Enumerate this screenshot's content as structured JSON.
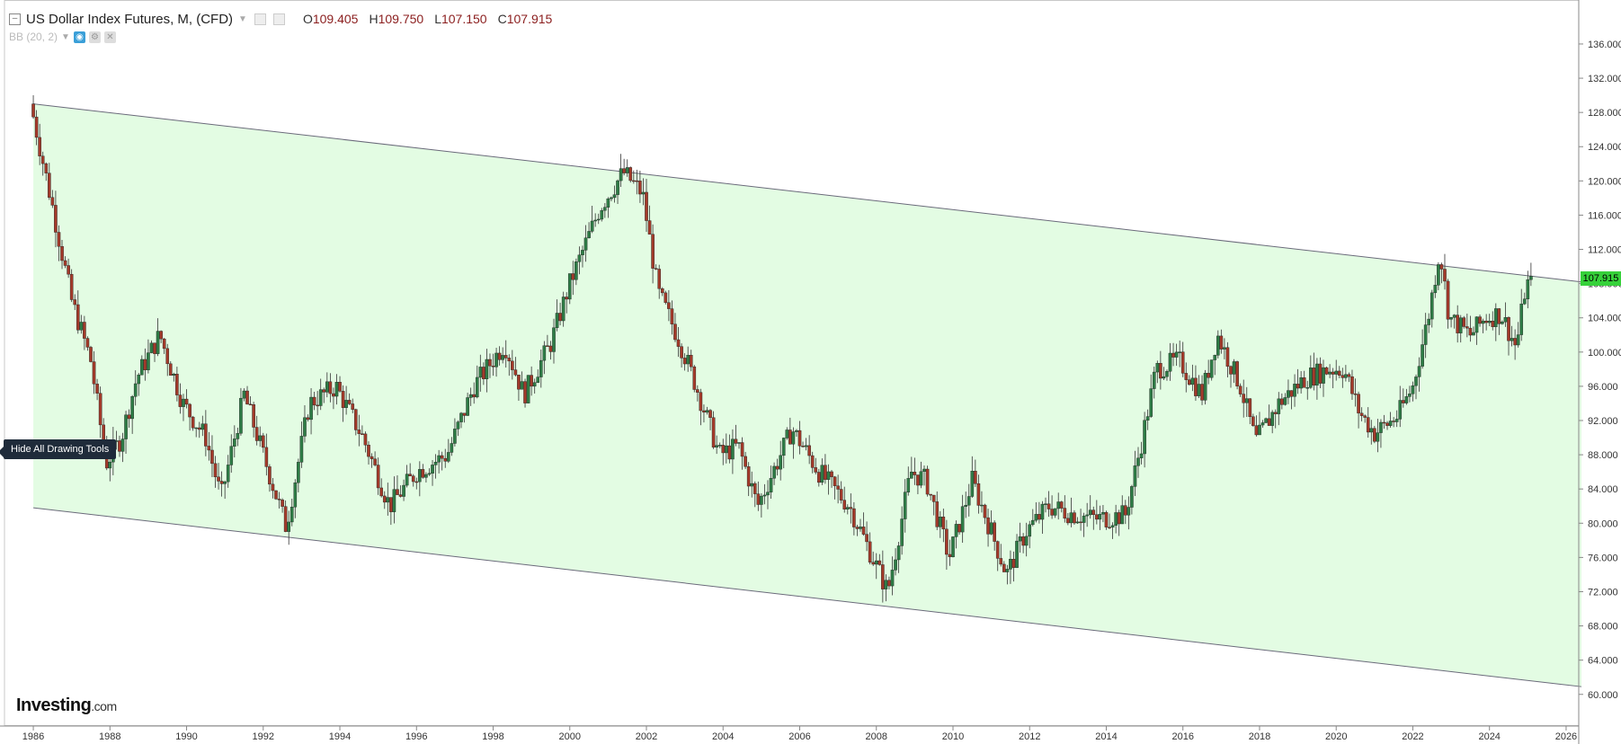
{
  "header": {
    "title": "US Dollar Index Futures, M, (CFD)",
    "ohlc": [
      {
        "key": "O",
        "value": "109.405"
      },
      {
        "key": "H",
        "value": "109.750"
      },
      {
        "key": "L",
        "value": "107.150"
      },
      {
        "key": "C",
        "value": "107.915"
      }
    ]
  },
  "indicator": {
    "label": "BB (20, 2)"
  },
  "tooltip": {
    "text": "Hide All Drawing Tools"
  },
  "logo": {
    "name": "Investing",
    "suffix": ".com"
  },
  "last_price": "107.915",
  "colors": {
    "up": "#2e7d46",
    "down": "#a33a2a",
    "channel_fill": "#e3fce3",
    "price_tag": "#36d13a"
  },
  "chart_data": {
    "type": "candlestick",
    "title": "US Dollar Index Futures, M, (CFD)",
    "xlim": [
      1985.6,
      2026.4
    ],
    "ylim": [
      58.4,
      138.2
    ],
    "x_ticks": [
      "1986",
      "1988",
      "1990",
      "1992",
      "1994",
      "1996",
      "1998",
      "2000",
      "2002",
      "2004",
      "2006",
      "2008",
      "2010",
      "2012",
      "2014",
      "2016",
      "2018",
      "2020",
      "2022",
      "2024",
      "2026",
      "202"
    ],
    "y_ticks": [
      "136.000",
      "132.000",
      "128.000",
      "124.000",
      "120.000",
      "116.000",
      "112.000",
      "108.000",
      "104.000",
      "100.000",
      "96.000",
      "92.000",
      "88.000",
      "84.000",
      "80.000",
      "76.000",
      "72.000",
      "68.000",
      "64.000",
      "60.000"
    ],
    "channel": {
      "upper": [
        [
          1986.0,
          129.0
        ],
        [
          2026.4,
          108.2
        ]
      ],
      "lower": [
        [
          1986.0,
          81.8
        ],
        [
          2026.4,
          60.9
        ]
      ]
    },
    "series": [
      {
        "values": [
          [
            1986.0,
            127.5
          ],
          [
            1986.5,
            117.0
          ],
          [
            1987.0,
            106.0
          ],
          [
            1987.5,
            99.0
          ],
          [
            1987.9,
            87.0
          ],
          [
            1988.3,
            90.0
          ],
          [
            1988.7,
            97.0
          ],
          [
            1989.3,
            102.0
          ],
          [
            1989.9,
            94.0
          ],
          [
            1990.5,
            90.0
          ],
          [
            1990.9,
            83.0
          ],
          [
            1991.5,
            95.0
          ],
          [
            1992.0,
            88.0
          ],
          [
            1992.6,
            79.5
          ],
          [
            1993.2,
            94.0
          ],
          [
            1993.9,
            96.0
          ],
          [
            1994.6,
            90.0
          ],
          [
            1995.3,
            82.0
          ],
          [
            1996.0,
            86.0
          ],
          [
            1996.8,
            88.0
          ],
          [
            1997.5,
            96.0
          ],
          [
            1998.3,
            101.0
          ],
          [
            1998.8,
            95.0
          ],
          [
            1999.5,
            101.0
          ],
          [
            2000.0,
            108.0
          ],
          [
            2000.8,
            117.0
          ],
          [
            2001.4,
            121.0
          ],
          [
            2001.9,
            118.5
          ],
          [
            2002.3,
            107.0
          ],
          [
            2002.8,
            102.0
          ],
          [
            2003.3,
            96.0
          ],
          [
            2003.9,
            88.0
          ],
          [
            2004.4,
            89.0
          ],
          [
            2004.9,
            82.0
          ],
          [
            2005.8,
            91.0
          ],
          [
            2006.5,
            86.0
          ],
          [
            2007.3,
            82.0
          ],
          [
            2007.9,
            76.0
          ],
          [
            2008.3,
            72.0
          ],
          [
            2008.9,
            86.0
          ],
          [
            2009.3,
            85.0
          ],
          [
            2009.9,
            76.0
          ],
          [
            2010.5,
            85.0
          ],
          [
            2011.0,
            79.0
          ],
          [
            2011.4,
            74.0
          ],
          [
            2011.9,
            79.0
          ],
          [
            2012.5,
            82.0
          ],
          [
            2013.2,
            81.0
          ],
          [
            2013.8,
            80.5
          ],
          [
            2014.5,
            81.0
          ],
          [
            2014.9,
            89.0
          ],
          [
            2015.3,
            98.0
          ],
          [
            2015.9,
            99.0
          ],
          [
            2016.5,
            95.0
          ],
          [
            2016.9,
            102.0
          ],
          [
            2017.5,
            96.0
          ],
          [
            2017.9,
            89.5
          ],
          [
            2018.5,
            94.0
          ],
          [
            2019.2,
            97.0
          ],
          [
            2019.8,
            98.0
          ],
          [
            2020.2,
            98.0
          ],
          [
            2020.6,
            93.0
          ],
          [
            2021.0,
            90.5
          ],
          [
            2021.6,
            92.5
          ],
          [
            2022.0,
            96.0
          ],
          [
            2022.4,
            104.0
          ],
          [
            2022.7,
            112.0
          ],
          [
            2022.95,
            104.0
          ],
          [
            2023.5,
            102.0
          ],
          [
            2023.9,
            104.0
          ],
          [
            2024.3,
            104.5
          ],
          [
            2024.7,
            100.5
          ],
          [
            2024.95,
            108.0
          ],
          [
            2025.05,
            107.9
          ]
        ]
      }
    ]
  }
}
